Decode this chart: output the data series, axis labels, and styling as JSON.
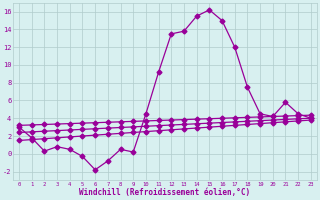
{
  "x": [
    0,
    1,
    2,
    3,
    4,
    5,
    6,
    7,
    8,
    9,
    10,
    11,
    12,
    13,
    14,
    15,
    16,
    17,
    18,
    19,
    20,
    21,
    22,
    23
  ],
  "y_main": [
    3.0,
    1.8,
    0.3,
    0.8,
    0.5,
    -0.3,
    -1.8,
    -0.8,
    0.5,
    0.2,
    4.5,
    9.2,
    13.5,
    13.8,
    15.5,
    16.2,
    15.0,
    12.0,
    7.5,
    4.5,
    4.2,
    5.8,
    4.5,
    4.0
  ],
  "y_line1": [
    3.2,
    3.25,
    3.3,
    3.35,
    3.4,
    3.45,
    3.5,
    3.55,
    3.6,
    3.65,
    3.7,
    3.75,
    3.8,
    3.85,
    3.9,
    3.95,
    4.0,
    4.05,
    4.1,
    4.15,
    4.2,
    4.25,
    4.3,
    4.35
  ],
  "y_line2": [
    2.4,
    2.47,
    2.54,
    2.61,
    2.68,
    2.75,
    2.82,
    2.89,
    2.96,
    3.03,
    3.1,
    3.17,
    3.24,
    3.31,
    3.38,
    3.45,
    3.52,
    3.59,
    3.66,
    3.73,
    3.8,
    3.87,
    3.94,
    4.01
  ],
  "y_line3": [
    1.5,
    1.6,
    1.7,
    1.8,
    1.9,
    2.0,
    2.1,
    2.2,
    2.3,
    2.4,
    2.5,
    2.6,
    2.7,
    2.8,
    2.9,
    3.0,
    3.1,
    3.2,
    3.3,
    3.4,
    3.5,
    3.6,
    3.7,
    3.8
  ],
  "line_color": "#990099",
  "bg_color": "#d8f0f0",
  "grid_color": "#b0cccc",
  "xlabel": "Windchill (Refroidissement éolien,°C)",
  "xlim": [
    -0.5,
    23.5
  ],
  "ylim": [
    -3,
    17
  ],
  "yticks": [
    -2,
    0,
    2,
    4,
    6,
    8,
    10,
    12,
    14,
    16
  ],
  "xticks": [
    0,
    1,
    2,
    3,
    4,
    5,
    6,
    7,
    8,
    9,
    10,
    11,
    12,
    13,
    14,
    15,
    16,
    17,
    18,
    19,
    20,
    21,
    22,
    23
  ],
  "marker": "D",
  "markersize": 2.5,
  "linewidth": 0.9
}
